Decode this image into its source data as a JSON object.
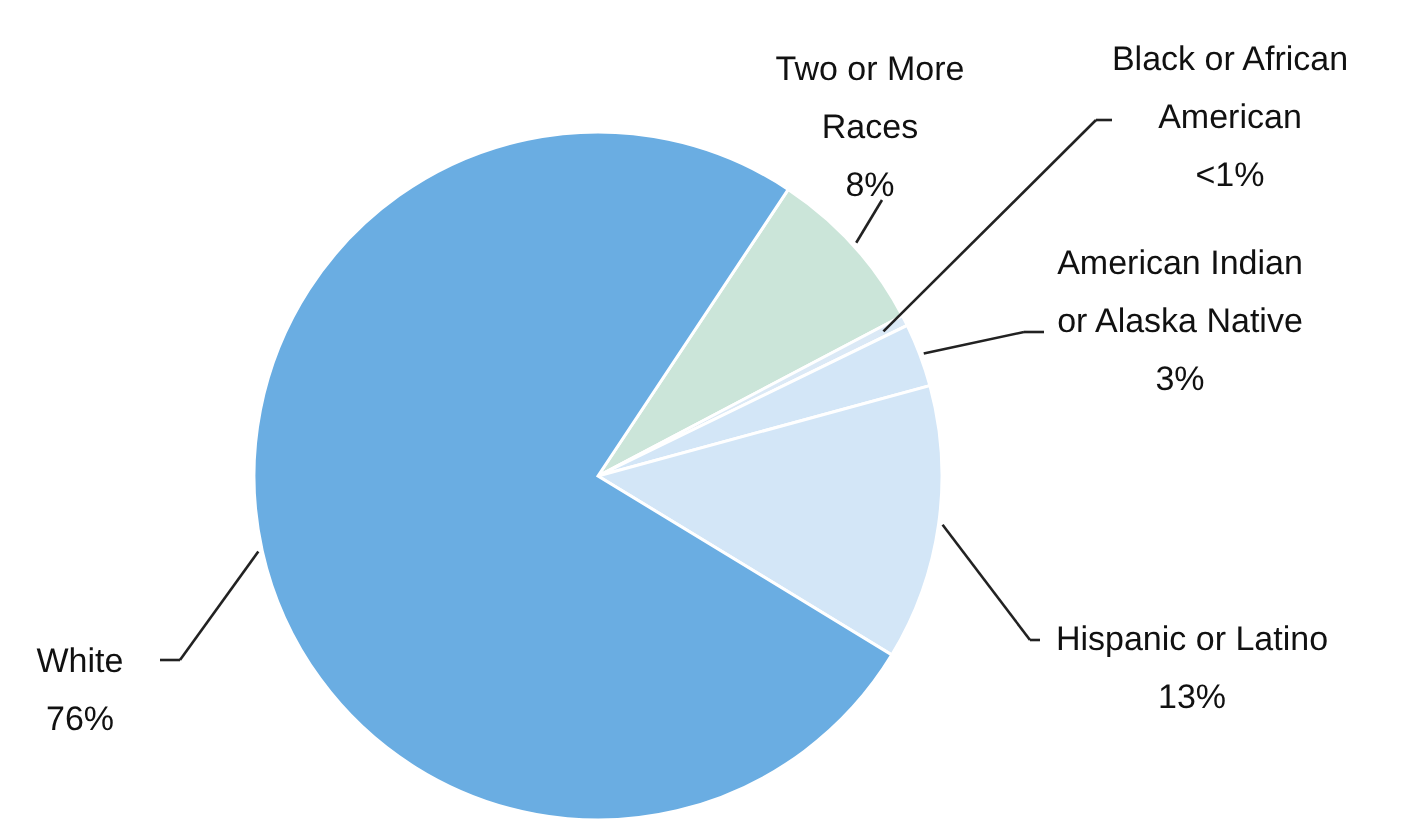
{
  "chart_data": {
    "type": "pie",
    "categories": [
      "Two or More Races",
      "Black or African American",
      "American Indian or Alaska Native",
      "Hispanic or Latino",
      "White"
    ],
    "values": [
      8,
      0.5,
      3,
      13,
      76
    ],
    "value_labels": [
      "8%",
      "<1%",
      "3%",
      "13%",
      "76%"
    ],
    "colors": [
      "#cbe5d9",
      "#dbe9f6",
      "#d3e6f7",
      "#d3e6f7",
      "#6aade2"
    ]
  }
}
